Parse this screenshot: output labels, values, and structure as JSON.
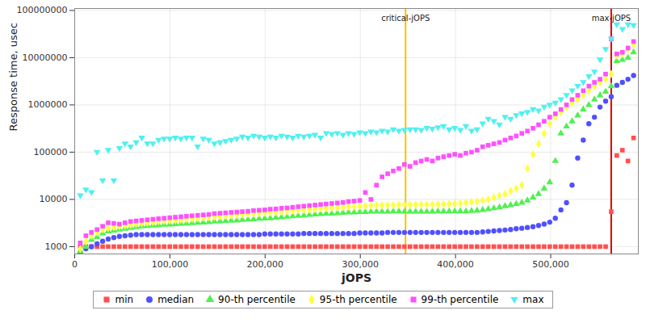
{
  "chart_data": {
    "type": "scatter",
    "xlabel": "jOPS",
    "ylabel": "Response time, usec",
    "log": "y",
    "grid": true,
    "legend": "bottom",
    "xlim": [
      0,
      592000
    ],
    "ylim": [
      700,
      110000000
    ],
    "xticks": [
      0,
      {
        "value": 100000,
        "label": "100,000"
      },
      {
        "value": 200000,
        "label": "200,000"
      },
      {
        "value": 300000,
        "label": "300,000"
      },
      {
        "value": 400000,
        "label": "400,000"
      },
      {
        "value": 500000,
        "label": "500,000"
      }
    ],
    "yticks": [
      1000,
      10000,
      100000,
      1000000,
      10000000,
      100000000
    ],
    "annotations": [
      {
        "x": 347500,
        "label": "critical-jOPS",
        "color": "#ffc000"
      },
      {
        "x": 563520,
        "label": "max-jOPS",
        "color": "#e00000"
      }
    ],
    "x": [
      5870,
      11740,
      17610,
      23480,
      29350,
      35220,
      41090,
      46960,
      52830,
      58700,
      64570,
      70440,
      76310,
      82180,
      88050,
      93920,
      99790,
      105660,
      111530,
      117400,
      123270,
      129140,
      135010,
      140880,
      146750,
      152620,
      158490,
      164360,
      170230,
      176100,
      181970,
      187840,
      193710,
      199580,
      205450,
      211320,
      217190,
      223060,
      228930,
      234800,
      240670,
      246540,
      252410,
      258280,
      264150,
      270020,
      275890,
      281760,
      287630,
      293500,
      299370,
      305240,
      311110,
      316980,
      322850,
      328720,
      334590,
      340460,
      346330,
      352200,
      358070,
      363940,
      369810,
      375680,
      381550,
      387420,
      393290,
      399160,
      405030,
      410900,
      416770,
      422640,
      428510,
      434380,
      440250,
      446120,
      451990,
      457860,
      463730,
      469600,
      475470,
      481340,
      487210,
      493080,
      498950,
      504820,
      510690,
      516560,
      522430,
      528300,
      534170,
      540040,
      545910,
      551780,
      557650,
      563520,
      569390,
      575260,
      581130,
      587000
    ],
    "series": [
      {
        "name": "min",
        "color": "#ff5050",
        "marker": "square",
        "values": [
          1000,
          1000,
          1000,
          1000,
          1000,
          1000,
          1000,
          1000,
          1000,
          1000,
          1000,
          1000,
          1000,
          1000,
          1000,
          1000,
          1000,
          1000,
          1000,
          1000,
          1000,
          1000,
          1000,
          1000,
          1000,
          1000,
          1000,
          1000,
          1000,
          1000,
          1000,
          1000,
          1000,
          1000,
          1000,
          1000,
          1000,
          1000,
          1000,
          1000,
          1000,
          1000,
          1000,
          1000,
          1000,
          1000,
          1000,
          1000,
          1000,
          1000,
          1000,
          1000,
          1000,
          1000,
          1000,
          1000,
          1000,
          1000,
          1000,
          1000,
          1000,
          1000,
          1000,
          1000,
          1000,
          1000,
          1000,
          1000,
          1000,
          1000,
          1000,
          1000,
          1000,
          1000,
          1000,
          1000,
          1000,
          1000,
          1000,
          1000,
          1000,
          1000,
          1000,
          1000,
          1000,
          1000,
          1000,
          1000,
          1000,
          1000,
          1000,
          1000,
          1000,
          1000,
          1000,
          5500,
          85000,
          110000,
          65000,
          200000
        ]
      },
      {
        "name": "median",
        "color": "#5050ff",
        "marker": "circle",
        "values": [
          750,
          900,
          1000,
          1150,
          1300,
          1450,
          1550,
          1650,
          1700,
          1750,
          1800,
          1800,
          1800,
          1800,
          1800,
          1800,
          1800,
          1800,
          1800,
          1800,
          1800,
          1800,
          1800,
          1800,
          1800,
          1800,
          1800,
          1800,
          1800,
          1800,
          1800,
          1800,
          1800,
          1850,
          1850,
          1850,
          1850,
          1850,
          1850,
          1850,
          1900,
          1900,
          1900,
          1900,
          1900,
          1900,
          1900,
          1900,
          1900,
          1900,
          1950,
          1950,
          1950,
          1950,
          1950,
          2000,
          2000,
          2000,
          2000,
          2000,
          2000,
          2000,
          2000,
          2000,
          2000,
          2000,
          2000,
          2000,
          2000,
          2000,
          2000,
          2000,
          2050,
          2100,
          2150,
          2200,
          2250,
          2300,
          2400,
          2450,
          2550,
          2650,
          2800,
          3000,
          3300,
          4000,
          6000,
          8500,
          20000,
          75000,
          180000,
          400000,
          550000,
          900000,
          1200000,
          1500000,
          2600000,
          3000000,
          3500000,
          4200000
        ]
      },
      {
        "name": "90-th percentile",
        "color": "#50f050",
        "marker": "triangle",
        "values": [
          800,
          1000,
          1400,
          1600,
          1900,
          2100,
          2200,
          2300,
          2400,
          2500,
          2600,
          2700,
          2750,
          2800,
          2850,
          2900,
          2950,
          3000,
          3050,
          3100,
          3150,
          3200,
          3250,
          3300,
          3400,
          3450,
          3500,
          3550,
          3600,
          3700,
          3750,
          3800,
          3900,
          3950,
          4000,
          4100,
          4200,
          4300,
          4400,
          4500,
          4600,
          4700,
          4800,
          4900,
          5000,
          5000,
          5100,
          5200,
          5300,
          5300,
          5400,
          5400,
          5500,
          5500,
          5500,
          5500,
          5600,
          5600,
          5500,
          5500,
          5500,
          5500,
          5500,
          5500,
          5600,
          5600,
          5600,
          5600,
          5600,
          5600,
          5700,
          5800,
          6000,
          6200,
          6500,
          6800,
          7200,
          7600,
          8000,
          8500,
          9500,
          11000,
          13000,
          17000,
          23000,
          65000,
          250000,
          350000,
          450000,
          600000,
          800000,
          1000000,
          1300000,
          1600000,
          1900000,
          2500000,
          8500000,
          9000000,
          10000000,
          13000000
        ]
      },
      {
        "name": "95-th percentile",
        "color": "#ffff40",
        "marker": "diamond",
        "values": [
          900,
          1300,
          1700,
          2000,
          2300,
          2500,
          2600,
          2700,
          2800,
          2900,
          3000,
          3100,
          3200,
          3300,
          3400,
          3500,
          3550,
          3600,
          3700,
          3800,
          3900,
          4000,
          4100,
          4200,
          4300,
          4400,
          4500,
          4600,
          4700,
          4800,
          4900,
          5000,
          5100,
          5200,
          5300,
          5400,
          5500,
          5600,
          5800,
          5900,
          6000,
          6100,
          6200,
          6400,
          6500,
          6600,
          6700,
          6800,
          7000,
          7100,
          7200,
          7300,
          7400,
          7500,
          7500,
          7600,
          7600,
          7700,
          7700,
          7700,
          7700,
          7800,
          7800,
          7800,
          7900,
          7900,
          8000,
          8100,
          8300,
          8500,
          8800,
          9000,
          9500,
          10000,
          11000,
          12000,
          13000,
          15000,
          17000,
          20000,
          45000,
          90000,
          150000,
          250000,
          400000,
          550000,
          700000,
          900000,
          1100000,
          1300000,
          1600000,
          2000000,
          2500000,
          3000000,
          3500000,
          4500000,
          11000000,
          12000000,
          15000000,
          19000000
        ]
      },
      {
        "name": "99-th percentile",
        "color": "#ff50ff",
        "marker": "square",
        "values": [
          1200,
          1700,
          2000,
          2300,
          2700,
          3200,
          3100,
          3000,
          3200,
          3400,
          3500,
          3600,
          3700,
          3800,
          3900,
          4000,
          4100,
          4200,
          4300,
          4400,
          4500,
          4600,
          4700,
          4800,
          5000,
          5100,
          5200,
          5300,
          5400,
          5500,
          5600,
          5800,
          5900,
          6000,
          6200,
          6300,
          6500,
          6600,
          6800,
          7000,
          7200,
          7400,
          7600,
          7800,
          8000,
          8200,
          8400,
          8600,
          9000,
          9200,
          9500,
          14000,
          10000,
          20000,
          30000,
          35000,
          40000,
          45000,
          55000,
          50000,
          60000,
          65000,
          70000,
          65000,
          75000,
          80000,
          85000,
          90000,
          85000,
          95000,
          100000,
          110000,
          130000,
          140000,
          150000,
          160000,
          180000,
          200000,
          220000,
          250000,
          280000,
          320000,
          380000,
          450000,
          550000,
          650000,
          800000,
          1000000,
          1300000,
          1600000,
          2000000,
          2500000,
          3000000,
          3500000,
          4500000,
          25000000,
          12000000,
          13000000,
          16000000,
          22000000
        ]
      },
      {
        "name": "max",
        "color": "#50f0f0",
        "marker": "triangle-down",
        "values": [
          12000,
          16000,
          14000,
          100000,
          25000,
          110000,
          25000,
          120000,
          150000,
          130000,
          160000,
          200000,
          150000,
          150000,
          180000,
          190000,
          190000,
          200000,
          190000,
          200000,
          200000,
          130000,
          190000,
          180000,
          150000,
          160000,
          170000,
          180000,
          190000,
          210000,
          200000,
          220000,
          210000,
          200000,
          210000,
          200000,
          220000,
          210000,
          200000,
          220000,
          210000,
          220000,
          230000,
          200000,
          250000,
          240000,
          250000,
          230000,
          250000,
          240000,
          260000,
          250000,
          270000,
          260000,
          280000,
          270000,
          300000,
          280000,
          290000,
          300000,
          300000,
          290000,
          320000,
          310000,
          330000,
          350000,
          300000,
          320000,
          290000,
          350000,
          280000,
          300000,
          400000,
          500000,
          450000,
          380000,
          550000,
          500000,
          600000,
          650000,
          700000,
          800000,
          750000,
          900000,
          1000000,
          1100000,
          1300000,
          1600000,
          2000000,
          2500000,
          3000000,
          4000000,
          5000000,
          9000000,
          15000000,
          25000000,
          50000000,
          40000000,
          50000000,
          48000000
        ]
      }
    ]
  }
}
